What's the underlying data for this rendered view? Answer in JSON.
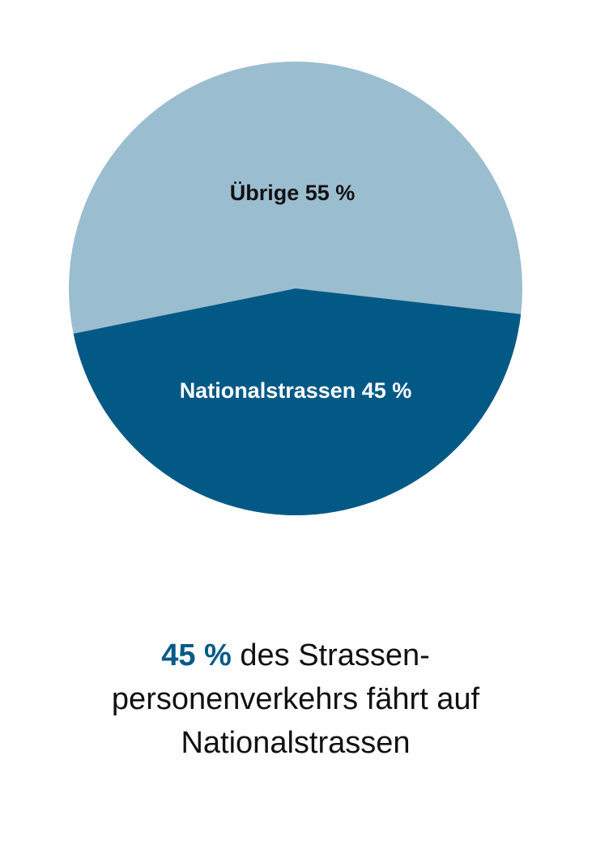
{
  "chart_data": {
    "type": "pie",
    "title": "",
    "slices": [
      {
        "label": "Übrige 55 %",
        "name": "Übrige",
        "value": 55,
        "color": "#9bbdd0",
        "text_color": "#111111"
      },
      {
        "label": "Nationalstrassen 45 %",
        "name": "Nationalstrassen",
        "value": 45,
        "color": "#025985",
        "text_color": "#ffffff"
      }
    ]
  },
  "caption": {
    "highlight": "45 %",
    "line1_rest": " des Strassen-",
    "line2": "personenverkehrs fährt auf",
    "line3": "Nationalstrassen",
    "highlight_color": "#035a86"
  }
}
